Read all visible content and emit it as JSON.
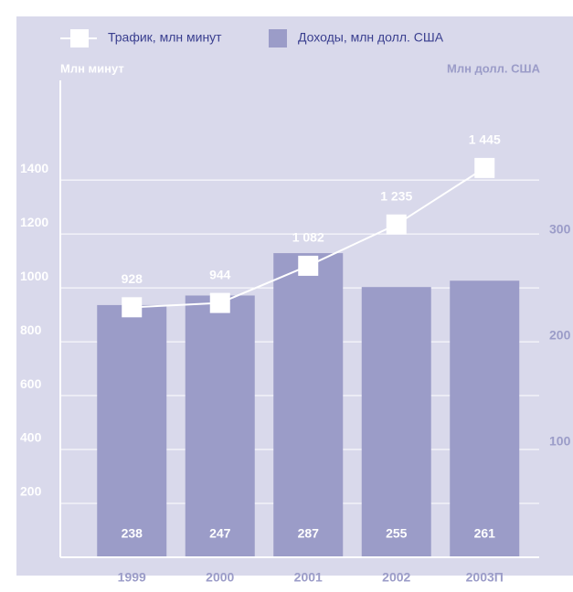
{
  "chart_data": {
    "type": "bar_line",
    "legend": [
      "Трафик, млн минут",
      "Доходы, млн долл. США"
    ],
    "y_axis_label": "Млн минут",
    "y2_axis_label": "Млн долл. США",
    "categories": [
      "1999",
      "2000",
      "2001",
      "2002",
      "2003П"
    ],
    "series": [
      {
        "name": "Трафик, млн минут",
        "type": "line",
        "color": "#ffffff",
        "values": [
          928,
          944,
          1082,
          1235,
          1445
        ],
        "value_labels": [
          "928",
          "944",
          "1 082",
          "1 235",
          "1 445"
        ]
      },
      {
        "name": "Доходы, млн долл. США",
        "type": "bar",
        "axis": "y2",
        "color": "#9b9cc8",
        "values": [
          238,
          247,
          287,
          255,
          261
        ]
      }
    ],
    "ylim": [
      0,
      1770
    ],
    "yticks": [
      200,
      400,
      600,
      800,
      1000,
      1200,
      1400
    ],
    "y2lim": [
      0,
      450
    ],
    "y2ticks": [
      100,
      200,
      300
    ],
    "grid": true
  }
}
